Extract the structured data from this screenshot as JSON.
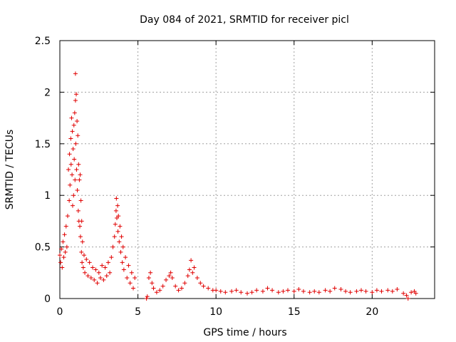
{
  "chart_data": {
    "type": "scatter",
    "title": "Day 084 of 2021, SRMTID for receiver picl",
    "xlabel": "GPS time / hours",
    "ylabel": "SRMTID / TECUs",
    "xlim": [
      0,
      24
    ],
    "ylim": [
      0,
      2.5
    ],
    "x_ticks": [
      0,
      5,
      10,
      15,
      20
    ],
    "x_tick_labels": [
      "0",
      "5",
      "10",
      "15",
      "20"
    ],
    "y_ticks": [
      0,
      0.5,
      1,
      1.5,
      2,
      2.5
    ],
    "y_tick_labels": [
      "0",
      "0.5",
      "1",
      "1.5",
      "2",
      "2.5"
    ],
    "grid": true,
    "marker": "+",
    "color": "#e00000",
    "series": [
      {
        "name": "SRMTID",
        "points": [
          [
            0.0,
            0.42
          ],
          [
            0.05,
            0.35
          ],
          [
            0.1,
            0.48
          ],
          [
            0.15,
            0.3
          ],
          [
            0.2,
            0.55
          ],
          [
            0.25,
            0.4
          ],
          [
            0.3,
            0.62
          ],
          [
            0.35,
            0.45
          ],
          [
            0.4,
            0.7
          ],
          [
            0.45,
            0.5
          ],
          [
            0.5,
            0.8
          ],
          [
            0.55,
            1.25
          ],
          [
            0.6,
            0.95
          ],
          [
            0.62,
            1.4
          ],
          [
            0.65,
            1.1
          ],
          [
            0.7,
            1.55
          ],
          [
            0.72,
            1.3
          ],
          [
            0.75,
            1.75
          ],
          [
            0.78,
            1.2
          ],
          [
            0.8,
            1.62
          ],
          [
            0.82,
            0.9
          ],
          [
            0.85,
            1.45
          ],
          [
            0.88,
            1.0
          ],
          [
            0.9,
            1.68
          ],
          [
            0.92,
            1.35
          ],
          [
            0.95,
            1.8
          ],
          [
            0.97,
            1.15
          ],
          [
            1.0,
            1.92
          ],
          [
            1.0,
            2.18
          ],
          [
            1.02,
            1.5
          ],
          [
            1.05,
            1.98
          ],
          [
            1.07,
            1.25
          ],
          [
            1.1,
            1.72
          ],
          [
            1.12,
            1.05
          ],
          [
            1.15,
            1.58
          ],
          [
            1.18,
            0.85
          ],
          [
            1.2,
            1.3
          ],
          [
            1.22,
            0.75
          ],
          [
            1.25,
            1.15
          ],
          [
            1.28,
            0.7
          ],
          [
            1.3,
            1.2
          ],
          [
            1.32,
            0.6
          ],
          [
            1.35,
            0.95
          ],
          [
            1.38,
            0.45
          ],
          [
            1.4,
            0.75
          ],
          [
            1.42,
            0.35
          ],
          [
            1.45,
            0.55
          ],
          [
            1.5,
            0.3
          ],
          [
            1.55,
            0.42
          ],
          [
            1.6,
            0.25
          ],
          [
            1.7,
            0.38
          ],
          [
            1.8,
            0.22
          ],
          [
            1.9,
            0.35
          ],
          [
            2.0,
            0.2
          ],
          [
            2.1,
            0.3
          ],
          [
            2.2,
            0.18
          ],
          [
            2.3,
            0.28
          ],
          [
            2.4,
            0.15
          ],
          [
            2.5,
            0.25
          ],
          [
            2.6,
            0.2
          ],
          [
            2.7,
            0.32
          ],
          [
            2.8,
            0.18
          ],
          [
            2.9,
            0.3
          ],
          [
            3.0,
            0.22
          ],
          [
            3.1,
            0.35
          ],
          [
            3.2,
            0.25
          ],
          [
            3.3,
            0.4
          ],
          [
            3.4,
            0.5
          ],
          [
            3.5,
            0.6
          ],
          [
            3.55,
            0.72
          ],
          [
            3.6,
            0.85
          ],
          [
            3.62,
            0.97
          ],
          [
            3.65,
            0.78
          ],
          [
            3.7,
            0.9
          ],
          [
            3.72,
            0.65
          ],
          [
            3.75,
            0.8
          ],
          [
            3.8,
            0.55
          ],
          [
            3.85,
            0.7
          ],
          [
            3.9,
            0.45
          ],
          [
            3.95,
            0.6
          ],
          [
            4.0,
            0.35
          ],
          [
            4.05,
            0.5
          ],
          [
            4.1,
            0.28
          ],
          [
            4.2,
            0.4
          ],
          [
            4.3,
            0.2
          ],
          [
            4.4,
            0.32
          ],
          [
            4.5,
            0.15
          ],
          [
            4.6,
            0.25
          ],
          [
            4.7,
            0.1
          ],
          [
            4.8,
            0.2
          ],
          [
            5.55,
            0.0
          ],
          [
            5.6,
            0.02
          ],
          [
            5.7,
            0.2
          ],
          [
            5.8,
            0.25
          ],
          [
            5.9,
            0.15
          ],
          [
            6.0,
            0.1
          ],
          [
            6.2,
            0.06
          ],
          [
            6.4,
            0.08
          ],
          [
            6.6,
            0.12
          ],
          [
            6.8,
            0.18
          ],
          [
            7.0,
            0.22
          ],
          [
            7.1,
            0.25
          ],
          [
            7.2,
            0.2
          ],
          [
            7.4,
            0.12
          ],
          [
            7.6,
            0.08
          ],
          [
            7.8,
            0.1
          ],
          [
            8.0,
            0.15
          ],
          [
            8.2,
            0.22
          ],
          [
            8.3,
            0.28
          ],
          [
            8.4,
            0.37
          ],
          [
            8.5,
            0.25
          ],
          [
            8.6,
            0.3
          ],
          [
            8.8,
            0.2
          ],
          [
            9.0,
            0.15
          ],
          [
            9.2,
            0.12
          ],
          [
            9.5,
            0.1
          ],
          [
            9.8,
            0.08
          ],
          [
            10.0,
            0.08
          ],
          [
            10.3,
            0.07
          ],
          [
            10.6,
            0.06
          ],
          [
            11.0,
            0.07
          ],
          [
            11.3,
            0.08
          ],
          [
            11.6,
            0.06
          ],
          [
            12.0,
            0.05
          ],
          [
            12.3,
            0.06
          ],
          [
            12.6,
            0.08
          ],
          [
            13.0,
            0.07
          ],
          [
            13.3,
            0.1
          ],
          [
            13.6,
            0.08
          ],
          [
            14.0,
            0.06
          ],
          [
            14.3,
            0.07
          ],
          [
            14.6,
            0.08
          ],
          [
            15.0,
            0.07
          ],
          [
            15.3,
            0.09
          ],
          [
            15.6,
            0.07
          ],
          [
            16.0,
            0.06
          ],
          [
            16.3,
            0.07
          ],
          [
            16.6,
            0.06
          ],
          [
            17.0,
            0.08
          ],
          [
            17.3,
            0.07
          ],
          [
            17.6,
            0.1
          ],
          [
            18.0,
            0.09
          ],
          [
            18.3,
            0.07
          ],
          [
            18.6,
            0.06
          ],
          [
            19.0,
            0.07
          ],
          [
            19.3,
            0.08
          ],
          [
            19.6,
            0.07
          ],
          [
            20.0,
            0.06
          ],
          [
            20.3,
            0.08
          ],
          [
            20.6,
            0.07
          ],
          [
            21.0,
            0.08
          ],
          [
            21.3,
            0.07
          ],
          [
            21.6,
            0.09
          ],
          [
            22.0,
            0.05
          ],
          [
            22.2,
            0.03
          ],
          [
            22.3,
            0.0
          ],
          [
            22.5,
            0.06
          ],
          [
            22.7,
            0.07
          ],
          [
            22.8,
            0.05
          ]
        ]
      }
    ]
  }
}
